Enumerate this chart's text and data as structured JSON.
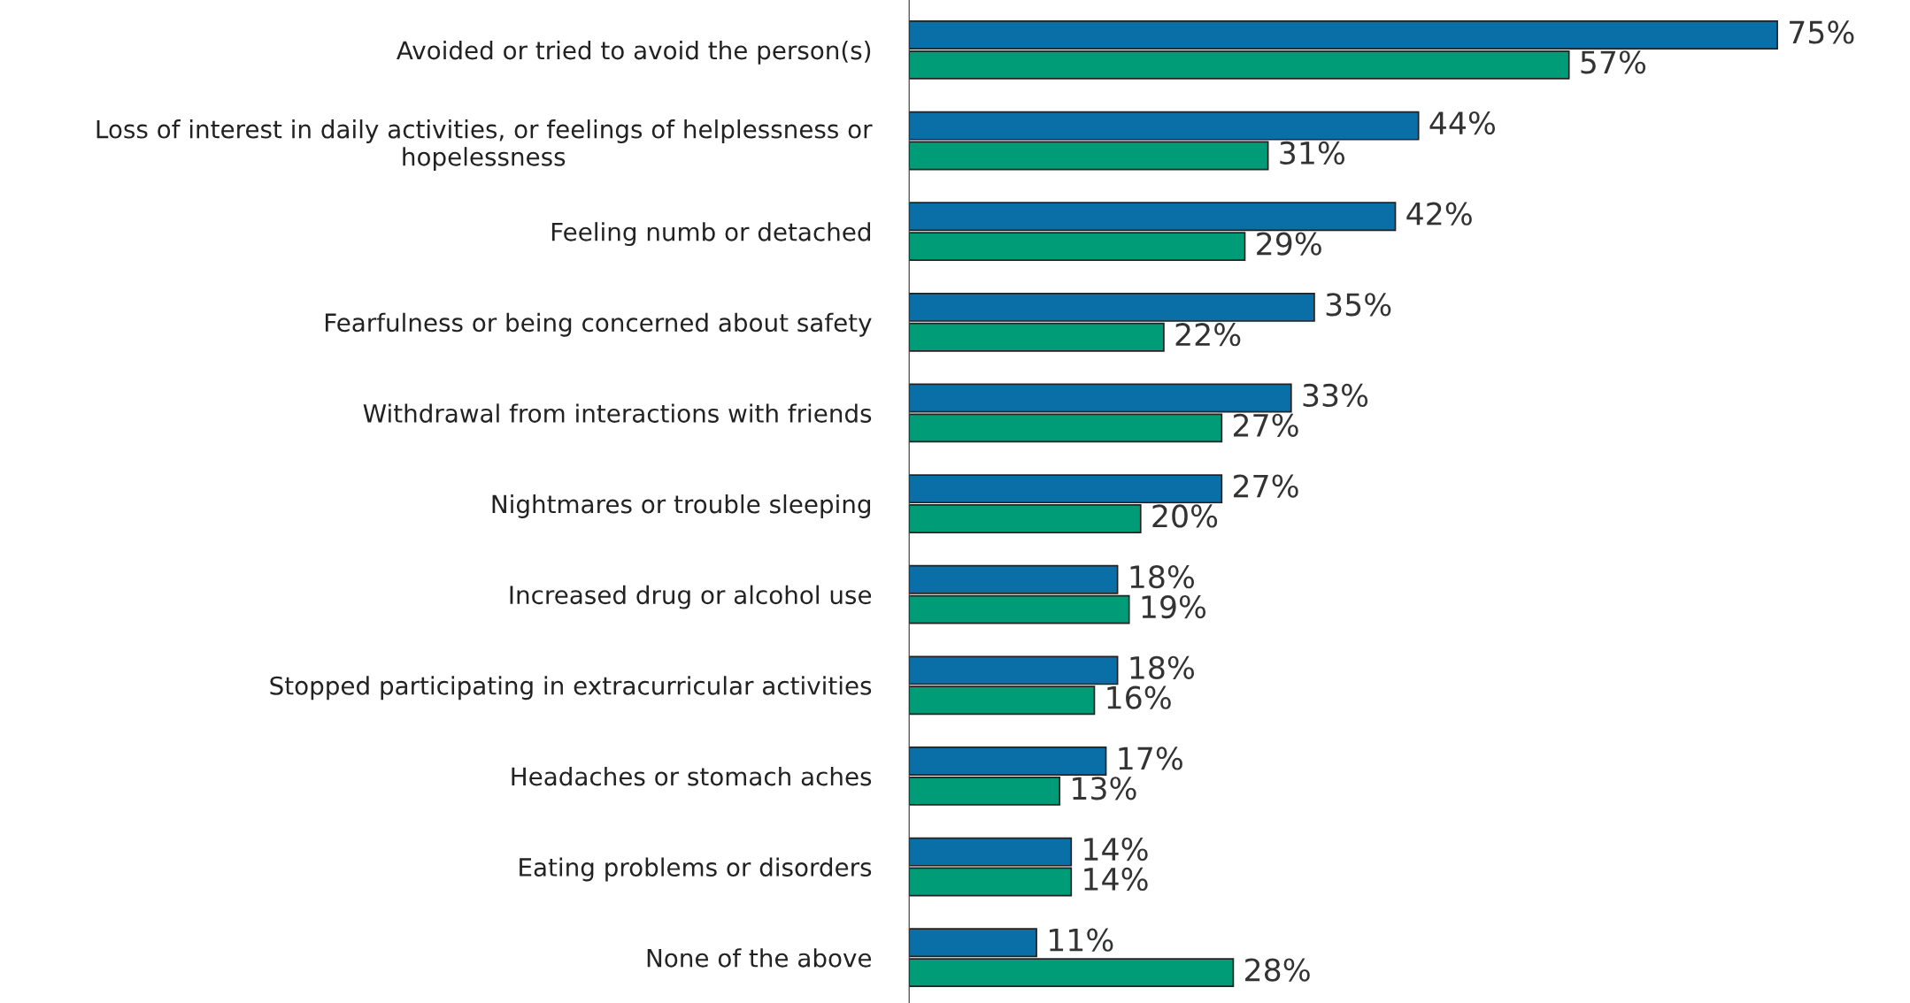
{
  "chart_data": {
    "type": "bar",
    "orientation": "horizontal",
    "legend": false,
    "grid": false,
    "categories": [
      "Avoided or tried to avoid the person(s)",
      "Loss of interest in daily activities, or feelings of helplessness or\nhopelessness",
      "Feeling numb or detached",
      "Fearfulness or being concerned about safety",
      "Withdrawal from interactions with friends",
      "Nightmares or trouble sleeping",
      "Increased drug or alcohol use",
      "Stopped participating in extracurricular activities",
      "Headaches or stomach aches",
      "Eating problems or disorders",
      "None of the above"
    ],
    "series": [
      {
        "color": "#0a6fa6",
        "values": [
          75,
          44,
          42,
          35,
          33,
          27,
          18,
          18,
          17,
          14,
          11
        ],
        "value_labels": [
          "75%",
          "44%",
          "42%",
          "35%",
          "33%",
          "27%",
          "18%",
          "18%",
          "17%",
          "14%",
          "11%"
        ]
      },
      {
        "color": "#009b77",
        "values": [
          57,
          31,
          29,
          22,
          27,
          20,
          19,
          16,
          13,
          14,
          28
        ],
        "value_labels": [
          "57%",
          "31%",
          "29%",
          "22%",
          "27%",
          "20%",
          "19%",
          "16%",
          "13%",
          "14%",
          "28%"
        ]
      }
    ]
  }
}
